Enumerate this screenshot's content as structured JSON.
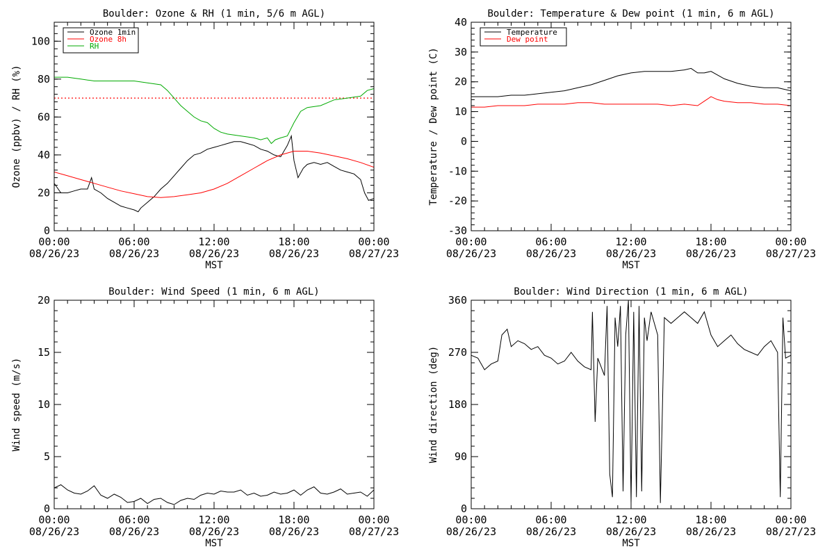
{
  "chart_data": [
    {
      "type": "line",
      "title": "Boulder: Ozone & RH (1 min, 5/6 m AGL)",
      "xlabel": "MST",
      "ylabel": "Ozone (ppbv) / RH (%)",
      "xlim": [
        0,
        24
      ],
      "ylim": [
        0,
        110
      ],
      "xticks": [
        {
          "time": "00:00",
          "date": "08/26/23"
        },
        {
          "time": "06:00",
          "date": "08/26/23"
        },
        {
          "time": "12:00",
          "date": "08/26/23"
        },
        {
          "time": "18:00",
          "date": "08/26/23"
        },
        {
          "time": "00:00",
          "date": "08/27/23"
        }
      ],
      "yticks": [
        "0",
        "20",
        "40",
        "60",
        "80",
        "100"
      ],
      "legend": {
        "placement": "top-left",
        "entries": [
          "Ozone 1min",
          "Ozone 8h",
          "RH"
        ]
      },
      "reference_line": {
        "y": 70,
        "style": "dotted",
        "color": "#ff0000"
      },
      "series": [
        {
          "name": "Ozone 1min",
          "color": "#000000",
          "x": [
            0,
            0.5,
            1,
            1.5,
            2,
            2.5,
            2.8,
            3,
            3.5,
            4,
            4.5,
            5,
            5.5,
            6,
            6.3,
            6.5,
            7,
            7.5,
            8,
            8.5,
            9,
            9.5,
            10,
            10.5,
            11,
            11.5,
            12,
            12.5,
            13,
            13.5,
            14,
            14.5,
            15,
            15.5,
            16,
            16.5,
            17,
            17.5,
            17.8,
            18,
            18.3,
            18.7,
            19,
            19.5,
            20,
            20.5,
            21,
            21.5,
            22,
            22.5,
            23,
            23.3,
            23.6,
            24
          ],
          "y": [
            25,
            20,
            20,
            21,
            22,
            22,
            28,
            22,
            20,
            17,
            15,
            13,
            12,
            11,
            10,
            12,
            15,
            18,
            22,
            25,
            29,
            33,
            37,
            40,
            41,
            43,
            44,
            45,
            46,
            47,
            47,
            46,
            45,
            43,
            42,
            40,
            39,
            45,
            50,
            37,
            28,
            33,
            35,
            36,
            35,
            36,
            34,
            32,
            31,
            30,
            27,
            20,
            16,
            17
          ]
        },
        {
          "name": "Ozone 8h",
          "color": "#ff0000",
          "x": [
            0,
            1,
            2,
            3,
            4,
            5,
            6,
            7,
            8,
            9,
            10,
            11,
            12,
            13,
            14,
            15,
            16,
            17,
            18,
            19,
            20,
            21,
            22,
            23,
            24
          ],
          "y": [
            31,
            29,
            27,
            25,
            23,
            21,
            19.5,
            18,
            17.5,
            18,
            19,
            20,
            22,
            25,
            29,
            33,
            37,
            40,
            42,
            42,
            41,
            39.5,
            38,
            36,
            33.5
          ]
        },
        {
          "name": "RH",
          "color": "#00aa00",
          "x": [
            0,
            1,
            2,
            3,
            4,
            5,
            6,
            7,
            8,
            8.5,
            9,
            9.5,
            10,
            10.5,
            11,
            11.5,
            12,
            12.5,
            13,
            14,
            15,
            15.5,
            16,
            16.3,
            16.6,
            17,
            17.5,
            18,
            18.5,
            19,
            20,
            21,
            22,
            23,
            23.5,
            24
          ],
          "y": [
            81,
            81,
            80,
            79,
            79,
            79,
            79,
            78,
            77,
            74,
            70,
            66,
            63,
            60,
            58,
            57,
            54,
            52,
            51,
            50,
            49,
            48,
            49,
            46,
            48,
            49,
            50,
            57,
            63,
            65,
            66,
            69,
            70,
            71,
            74,
            75
          ]
        }
      ]
    },
    {
      "type": "line",
      "title": "Boulder: Temperature & Dew point (1 min, 6 m AGL)",
      "xlabel": "MST",
      "ylabel": "Temperature / Dew point (C)",
      "xlim": [
        0,
        24
      ],
      "ylim": [
        -30,
        40
      ],
      "xticks": [
        {
          "time": "00:00",
          "date": "08/26/23"
        },
        {
          "time": "06:00",
          "date": "08/26/23"
        },
        {
          "time": "12:00",
          "date": "08/26/23"
        },
        {
          "time": "18:00",
          "date": "08/26/23"
        },
        {
          "time": "00:00",
          "date": "08/27/23"
        }
      ],
      "yticks": [
        "-30",
        "-20",
        "-10",
        "0",
        "10",
        "20",
        "30",
        "40"
      ],
      "legend": {
        "placement": "top-left",
        "entries": [
          "Temperature",
          "Dew point"
        ]
      },
      "series": [
        {
          "name": "Temperature",
          "color": "#000000",
          "x": [
            0,
            1,
            2,
            3,
            4,
            5,
            6,
            7,
            8,
            9,
            10,
            11,
            12,
            13,
            14,
            15,
            16,
            16.5,
            17,
            17.5,
            18,
            19,
            20,
            21,
            22,
            23,
            24
          ],
          "y": [
            15,
            15,
            15,
            15.5,
            15.5,
            16,
            16.5,
            17,
            18,
            19,
            20.5,
            22,
            23,
            23.5,
            23.5,
            23.5,
            24,
            24.5,
            23,
            23,
            23.5,
            21,
            19.5,
            18.5,
            18,
            18,
            17
          ]
        },
        {
          "name": "Dew point",
          "color": "#ff0000",
          "x": [
            0,
            1,
            2,
            3,
            4,
            5,
            6,
            7,
            8,
            9,
            10,
            11,
            12,
            13,
            14,
            15,
            16,
            17,
            17.5,
            18,
            18.5,
            19,
            20,
            21,
            22,
            23,
            24
          ],
          "y": [
            11.5,
            11.5,
            12,
            12,
            12,
            12.5,
            12.5,
            12.5,
            13,
            13,
            12.5,
            12.5,
            12.5,
            12.5,
            12.5,
            12,
            12.5,
            12,
            13.5,
            15,
            14,
            13.5,
            13,
            13,
            12.5,
            12.5,
            12
          ]
        }
      ]
    },
    {
      "type": "line",
      "title": "Boulder: Wind Speed (1 min, 6 m AGL)",
      "xlabel": "MST",
      "ylabel": "Wind speed (m/s)",
      "xlim": [
        0,
        24
      ],
      "ylim": [
        0,
        20
      ],
      "xticks": [
        {
          "time": "00:00",
          "date": "08/26/23"
        },
        {
          "time": "06:00",
          "date": "08/26/23"
        },
        {
          "time": "12:00",
          "date": "08/26/23"
        },
        {
          "time": "18:00",
          "date": "08/26/23"
        },
        {
          "time": "00:00",
          "date": "08/27/23"
        }
      ],
      "yticks": [
        "0",
        "5",
        "10",
        "15",
        "20"
      ],
      "series": [
        {
          "name": "",
          "color": "#000000",
          "x": [
            0,
            0.5,
            1,
            1.5,
            2,
            2.5,
            3,
            3.5,
            4,
            4.5,
            5,
            5.5,
            6,
            6.5,
            7,
            7.5,
            8,
            8.5,
            9,
            9.5,
            10,
            10.5,
            11,
            11.5,
            12,
            12.5,
            13,
            13.5,
            14,
            14.5,
            15,
            15.5,
            16,
            16.5,
            17,
            17.5,
            18,
            18.5,
            19,
            19.5,
            20,
            20.5,
            21,
            21.5,
            22,
            22.5,
            23,
            23.5,
            24
          ],
          "y": [
            2.0,
            2.3,
            1.8,
            1.5,
            1.4,
            1.7,
            2.2,
            1.3,
            1.0,
            1.4,
            1.1,
            0.6,
            0.7,
            1.0,
            0.5,
            0.9,
            1.0,
            0.6,
            0.4,
            0.8,
            1.0,
            0.9,
            1.3,
            1.5,
            1.4,
            1.7,
            1.6,
            1.6,
            1.8,
            1.3,
            1.5,
            1.2,
            1.3,
            1.6,
            1.4,
            1.5,
            1.8,
            1.3,
            1.8,
            2.1,
            1.5,
            1.4,
            1.6,
            1.9,
            1.4,
            1.5,
            1.6,
            1.2,
            1.8
          ]
        }
      ]
    },
    {
      "type": "line",
      "title": "Boulder: Wind Direction (1 min, 6 m AGL)",
      "xlabel": "MST",
      "ylabel": "Wind direction (deg)",
      "xlim": [
        0,
        24
      ],
      "ylim": [
        0,
        360
      ],
      "xticks": [
        {
          "time": "00:00",
          "date": "08/26/23"
        },
        {
          "time": "06:00",
          "date": "08/26/23"
        },
        {
          "time": "12:00",
          "date": "08/26/23"
        },
        {
          "time": "18:00",
          "date": "08/26/23"
        },
        {
          "time": "00:00",
          "date": "08/27/23"
        }
      ],
      "yticks": [
        "0",
        "90",
        "180",
        "270",
        "360"
      ],
      "series": [
        {
          "name": "",
          "color": "#000000",
          "x": [
            0,
            0.5,
            1,
            1.5,
            2,
            2.3,
            2.7,
            3,
            3.5,
            4,
            4.5,
            5,
            5.5,
            6,
            6.5,
            7,
            7.5,
            8,
            8.5,
            9,
            9.1,
            9.3,
            9.5,
            10,
            10.2,
            10.4,
            10.6,
            10.8,
            11,
            11.2,
            11.4,
            11.6,
            11.8,
            12,
            12.2,
            12.4,
            12.6,
            12.8,
            13,
            13.2,
            13.5,
            14,
            14.2,
            14.5,
            15,
            15.5,
            16,
            16.5,
            17,
            17.5,
            18,
            18.5,
            19,
            19.5,
            20,
            20.5,
            21,
            21.5,
            22,
            22.5,
            23,
            23.2,
            23.4,
            23.6,
            24
          ],
          "y": [
            265,
            260,
            240,
            250,
            255,
            300,
            310,
            280,
            290,
            285,
            275,
            280,
            265,
            260,
            250,
            255,
            270,
            255,
            245,
            240,
            340,
            150,
            260,
            230,
            350,
            60,
            20,
            330,
            280,
            350,
            30,
            300,
            360,
            10,
            340,
            20,
            350,
            30,
            330,
            290,
            340,
            300,
            10,
            330,
            320,
            330,
            340,
            330,
            320,
            340,
            300,
            280,
            290,
            300,
            285,
            275,
            270,
            265,
            280,
            290,
            270,
            20,
            330,
            260,
            265
          ]
        }
      ]
    }
  ]
}
